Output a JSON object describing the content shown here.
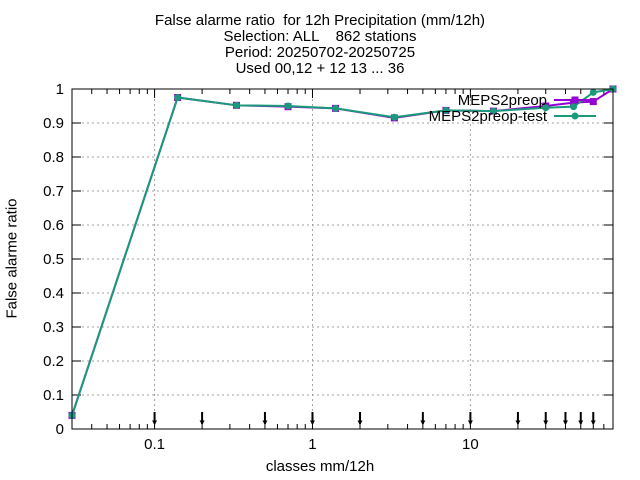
{
  "chart_data": {
    "type": "line",
    "title_lines": [
      "False alarme ratio  for 12h Precipitation (mm/12h)",
      "Selection: ALL    862 stations",
      "Period: 20250702-20250725",
      "Used 00,12 + 12 13 ... 36"
    ],
    "xlabel": "classes mm/12h",
    "ylabel": "False alarme ratio",
    "x_scale": "log",
    "xlim": [
      0.03,
      80
    ],
    "ylim": [
      0,
      1
    ],
    "x_ticks": [
      {
        "value": 0.1,
        "label": "0.1"
      },
      {
        "value": 1,
        "label": "1"
      },
      {
        "value": 10,
        "label": "10"
      }
    ],
    "y_ticks": [
      {
        "value": 0,
        "label": "0"
      },
      {
        "value": 0.1,
        "label": "0.1"
      },
      {
        "value": 0.2,
        "label": "0.2"
      },
      {
        "value": 0.3,
        "label": "0.3"
      },
      {
        "value": 0.4,
        "label": "0.4"
      },
      {
        "value": 0.5,
        "label": "0.5"
      },
      {
        "value": 0.6,
        "label": "0.6"
      },
      {
        "value": 0.7,
        "label": "0.7"
      },
      {
        "value": 0.8,
        "label": "0.8"
      },
      {
        "value": 0.9,
        "label": "0.9"
      },
      {
        "value": 1,
        "label": "1"
      }
    ],
    "grid": true,
    "legend_position": "top-right",
    "class_markers": [
      0.1,
      0.2,
      0.5,
      1,
      2,
      5,
      10,
      20,
      30,
      40,
      50,
      60
    ],
    "series": [
      {
        "name": "MEPS2preop",
        "color": "#9400d3",
        "marker": "square",
        "x": [
          0.03,
          0.14,
          0.33,
          0.7,
          1.4,
          3.3,
          7,
          14,
          30,
          45,
          60,
          80
        ],
        "y": [
          0.04,
          0.975,
          0.952,
          0.948,
          0.943,
          0.915,
          0.937,
          0.935,
          0.95,
          0.96,
          0.963,
          1.0
        ]
      },
      {
        "name": "MEPS2preop-test",
        "color": "#1a9a7a",
        "marker": "circle",
        "x": [
          0.03,
          0.14,
          0.33,
          0.7,
          1.4,
          3.3,
          7,
          14,
          30,
          45,
          60,
          80
        ],
        "y": [
          0.04,
          0.975,
          0.952,
          0.95,
          0.943,
          0.917,
          0.937,
          0.935,
          0.945,
          0.948,
          0.99,
          1.0
        ]
      }
    ]
  }
}
